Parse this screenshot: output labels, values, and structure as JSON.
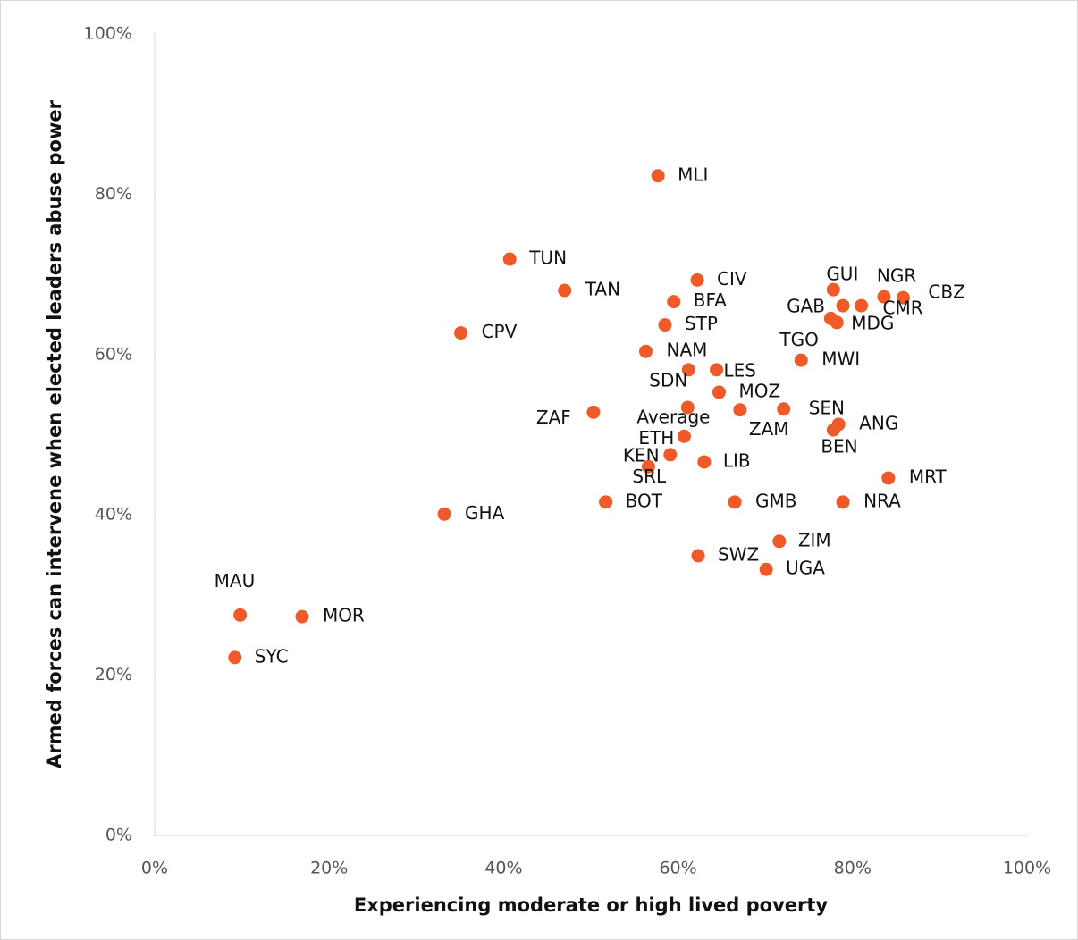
{
  "chart_data": {
    "type": "scatter",
    "x_label": "Experiencing moderate or high lived poverty",
    "y_label": "Armed forces can intervene when elected leaders abuse power",
    "color": "#f05a28",
    "xlim": [
      0,
      100
    ],
    "ylim": [
      0,
      100
    ],
    "xticks": [
      {
        "value": 0,
        "label": "0%"
      },
      {
        "value": 20,
        "label": "20%"
      },
      {
        "value": 40,
        "label": "40%"
      },
      {
        "value": 60,
        "label": "60%"
      },
      {
        "value": 80,
        "label": "80%"
      },
      {
        "value": 100,
        "label": "100%"
      }
    ],
    "yticks": [
      {
        "value": 0,
        "label": "0%"
      },
      {
        "value": 20,
        "label": "20%"
      },
      {
        "value": 40,
        "label": "40%"
      },
      {
        "value": 60,
        "label": "60%"
      },
      {
        "value": 80,
        "label": "80%"
      },
      {
        "value": 100,
        "label": "100%"
      }
    ],
    "labels": [
      "MLI",
      "TUN",
      "TAN",
      "CPV",
      "CIV",
      "BFA",
      "STP",
      "NAM",
      "SDN",
      "LES",
      "MOZ",
      "Average",
      "ZAF",
      "SEN",
      "ZAM",
      "ETH",
      "KEN",
      "SRL",
      "LIB",
      "BOT",
      "GHA",
      "GMB",
      "NRA",
      "MRT",
      "ZIM",
      "SWZ",
      "UGA",
      "GUI",
      "NGR",
      "CBZ",
      "CMR",
      "GAB",
      "MDG",
      "TGO",
      "MWI",
      "ANG",
      "BEN",
      "MAU",
      "MOR",
      "SYC"
    ],
    "x": [
      57.7,
      40.7,
      47.0,
      35.1,
      62.2,
      59.5,
      58.5,
      56.3,
      61.2,
      64.4,
      64.7,
      61.1,
      50.3,
      72.1,
      67.1,
      60.7,
      59.1,
      56.6,
      63.0,
      51.7,
      33.2,
      66.5,
      78.9,
      84.1,
      71.6,
      62.3,
      70.1,
      77.8,
      83.6,
      85.8,
      81.0,
      78.9,
      78.2,
      77.5,
      74.1,
      78.4,
      77.8,
      9.8,
      16.9,
      9.2
    ],
    "y": [
      82.3,
      71.9,
      68.0,
      62.7,
      69.3,
      66.6,
      63.7,
      60.4,
      58.1,
      58.1,
      55.3,
      53.4,
      52.8,
      53.2,
      53.1,
      49.8,
      47.5,
      46.0,
      46.6,
      41.6,
      40.1,
      41.6,
      41.6,
      44.6,
      36.7,
      34.9,
      33.2,
      68.1,
      67.2,
      67.1,
      66.1,
      66.1,
      64.0,
      64.5,
      59.3,
      51.3,
      50.6,
      27.5,
      27.3,
      22.2
    ]
  }
}
